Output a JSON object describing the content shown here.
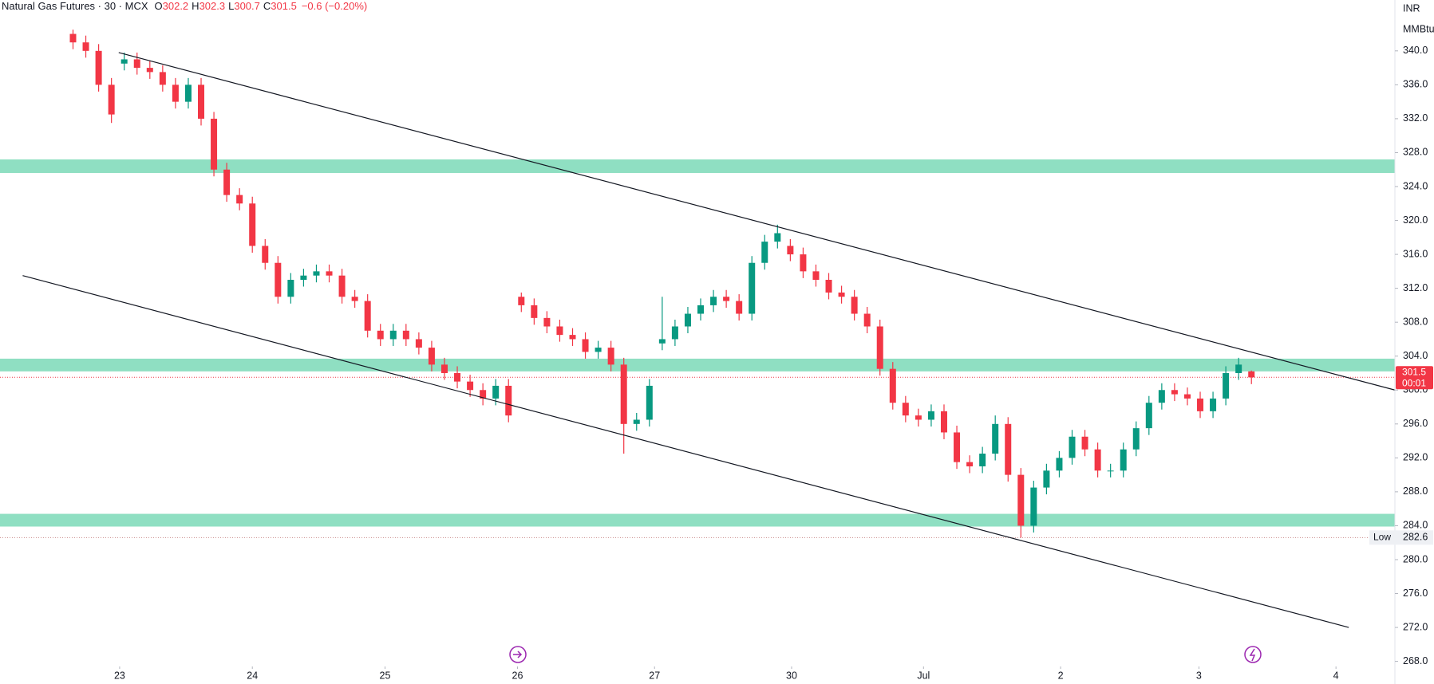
{
  "header": {
    "symbol": "Natural Gas Futures · 30 · MCX",
    "ohlc": [
      {
        "label": "O",
        "value": "302.2"
      },
      {
        "label": "H",
        "value": "302.3"
      },
      {
        "label": "L",
        "value": "300.7"
      },
      {
        "label": "C",
        "value": "301.5"
      }
    ],
    "change": "−0.6 (−0.20%)"
  },
  "chart_data": {
    "type": "candlestick",
    "currency": "INR",
    "unit": "MMBtu",
    "up_color": "#089981",
    "down_color": "#f23645",
    "zone_color": "#8fdfc2",
    "xlim": [
      -5.7,
      103.2
    ],
    "xticks": [
      {
        "value": 3.64,
        "label": "23"
      },
      {
        "value": 14,
        "label": "24"
      },
      {
        "value": 24.36,
        "label": "25"
      },
      {
        "value": 34.7,
        "label": "26"
      },
      {
        "value": 45.4,
        "label": "27"
      },
      {
        "value": 56.1,
        "label": "30"
      },
      {
        "value": 66.4,
        "label": "Jul"
      },
      {
        "value": 77.1,
        "label": "2"
      },
      {
        "value": 87.9,
        "label": "3"
      },
      {
        "value": 98.6,
        "label": "4"
      }
    ],
    "ylim": [
      267.4,
      346.0
    ],
    "yticks": [
      {
        "value": 340,
        "label": "340.0"
      },
      {
        "value": 336,
        "label": "336.0"
      },
      {
        "value": 332,
        "label": "332.0"
      },
      {
        "value": 328,
        "label": "328.0"
      },
      {
        "value": 324,
        "label": "324.0"
      },
      {
        "value": 320,
        "label": "320.0"
      },
      {
        "value": 316,
        "label": "316.0"
      },
      {
        "value": 312,
        "label": "312.0"
      },
      {
        "value": 308,
        "label": "308.0"
      },
      {
        "value": 304,
        "label": "304.0"
      },
      {
        "value": 300,
        "label": "300.0"
      },
      {
        "value": 296,
        "label": "296.0"
      },
      {
        "value": 292,
        "label": "292.0"
      },
      {
        "value": 288,
        "label": "288.0"
      },
      {
        "value": 284,
        "label": "284.0"
      },
      {
        "value": 280,
        "label": "280.0"
      },
      {
        "value": 276,
        "label": "276.0"
      },
      {
        "value": 272,
        "label": "272.0"
      },
      {
        "value": 268,
        "label": "268.0"
      }
    ],
    "open": [
      342,
      341,
      340,
      336,
      338.5,
      339,
      338,
      337.5,
      336,
      334,
      336,
      332,
      326,
      323,
      322,
      317,
      315,
      311,
      313,
      313.5,
      314,
      313.5,
      311,
      310.5,
      307,
      306,
      307,
      306,
      305,
      303,
      302,
      301,
      300,
      299,
      300.5,
      311,
      310,
      308.5,
      307.5,
      306.5,
      306,
      304.5,
      305,
      303,
      296,
      296.5,
      305.5,
      306,
      307.5,
      309,
      310,
      311,
      310.5,
      309,
      315,
      317.5,
      317,
      316,
      314,
      313,
      311.5,
      311,
      309,
      307.5,
      302.5,
      298.5,
      297,
      296.5,
      297.5,
      295,
      291.5,
      291,
      292.5,
      296,
      290,
      284,
      288.5,
      290.5,
      292,
      294.5,
      293,
      290.5,
      290.5,
      293,
      295.5,
      298.5,
      300,
      299.5,
      299,
      297.5,
      299,
      302,
      302.2
    ],
    "high": [
      342.5,
      341.8,
      340.8,
      336.8,
      339.8,
      339.8,
      338.8,
      338.3,
      336.8,
      336.8,
      336.8,
      332.8,
      326.8,
      323.8,
      322.8,
      317.8,
      315.8,
      313.8,
      314.3,
      314.8,
      314.8,
      314.3,
      311.8,
      311.3,
      307.8,
      307.8,
      307.8,
      306.8,
      305.8,
      303.8,
      302.8,
      301.8,
      300.8,
      301.3,
      301.3,
      311.5,
      310.8,
      309.3,
      308.3,
      307.3,
      306.8,
      305.8,
      305.8,
      303.8,
      297.3,
      301.3,
      311,
      308.3,
      309.8,
      310.8,
      311.8,
      311.8,
      311.3,
      315.8,
      318.3,
      319.5,
      317.8,
      316.8,
      314.8,
      313.8,
      312.3,
      311.8,
      309.8,
      308.3,
      303.3,
      299.3,
      297.8,
      298.3,
      298.3,
      295.8,
      292.3,
      293.3,
      297,
      296.8,
      290.8,
      289.3,
      291.3,
      292.8,
      295.3,
      295.3,
      293.8,
      291.3,
      293.8,
      296.3,
      299.3,
      300.8,
      300.8,
      300.3,
      299.8,
      299.8,
      302.8,
      303.8,
      302.3
    ],
    "low": [
      340.2,
      339.2,
      335.2,
      331.5,
      337.7,
      337.2,
      336.7,
      335.2,
      333.2,
      333.2,
      331.2,
      325.2,
      322.2,
      321.2,
      316.2,
      314.2,
      310.2,
      310.2,
      312.2,
      312.7,
      312.7,
      310.2,
      309.7,
      306.2,
      305.2,
      305.2,
      305.2,
      304.2,
      302.2,
      301.2,
      300.2,
      299.2,
      298.2,
      298.2,
      296.2,
      309.2,
      307.7,
      306.7,
      305.7,
      305.2,
      303.7,
      303.7,
      302.2,
      292.5,
      295.2,
      295.7,
      304.7,
      305.2,
      306.7,
      308.2,
      309.2,
      309.7,
      308.2,
      308.2,
      314.2,
      316.7,
      315.2,
      313.2,
      312.2,
      310.7,
      310.2,
      308.2,
      306.7,
      301.7,
      297.7,
      296.2,
      295.7,
      295.7,
      294.2,
      290.7,
      290.2,
      290.2,
      291.7,
      289.2,
      282.6,
      283.2,
      287.7,
      289.7,
      291.2,
      292.2,
      289.7,
      289.7,
      289.7,
      292.2,
      294.7,
      297.7,
      298.7,
      298.2,
      296.7,
      296.7,
      298.2,
      301.2,
      300.7
    ],
    "close": [
      341,
      340,
      336,
      332.5,
      339,
      338,
      337.5,
      336,
      334,
      336,
      332,
      326,
      323,
      322,
      317,
      315,
      311,
      313,
      313.5,
      314,
      313.5,
      311,
      310.5,
      307,
      306,
      307,
      306,
      305,
      303,
      302,
      301,
      300,
      299,
      300.5,
      297,
      310,
      308.5,
      307.5,
      306.5,
      306,
      304.5,
      305,
      303,
      296,
      296.5,
      300.5,
      306,
      307.5,
      309,
      310,
      311,
      310.5,
      309,
      315,
      317.5,
      318.5,
      316,
      314,
      313,
      311.5,
      311,
      309,
      307.5,
      302.5,
      298.5,
      297,
      296.5,
      297.5,
      295,
      291.5,
      291,
      292.5,
      296,
      290,
      284,
      288.5,
      290.5,
      292,
      294.5,
      293,
      290.5,
      290.5,
      293,
      295.5,
      298.5,
      300,
      299.5,
      299,
      297.5,
      299,
      302,
      303,
      301.5
    ],
    "zones": [
      {
        "low": 325.6,
        "high": 327.2
      },
      {
        "low": 302.2,
        "high": 303.7
      },
      {
        "low": 283.9,
        "high": 285.4
      }
    ],
    "trendlines": [
      {
        "x": [
          3.57,
          103.2
        ],
        "y": [
          339.8,
          300.0
        ]
      },
      {
        "x": [
          -3.93,
          99.6
        ],
        "y": [
          313.5,
          272.0
        ]
      }
    ],
    "last_price": {
      "value": 301.5,
      "countdown": "00:01"
    },
    "low_marker": {
      "label": "Low",
      "value": 282.6
    }
  }
}
